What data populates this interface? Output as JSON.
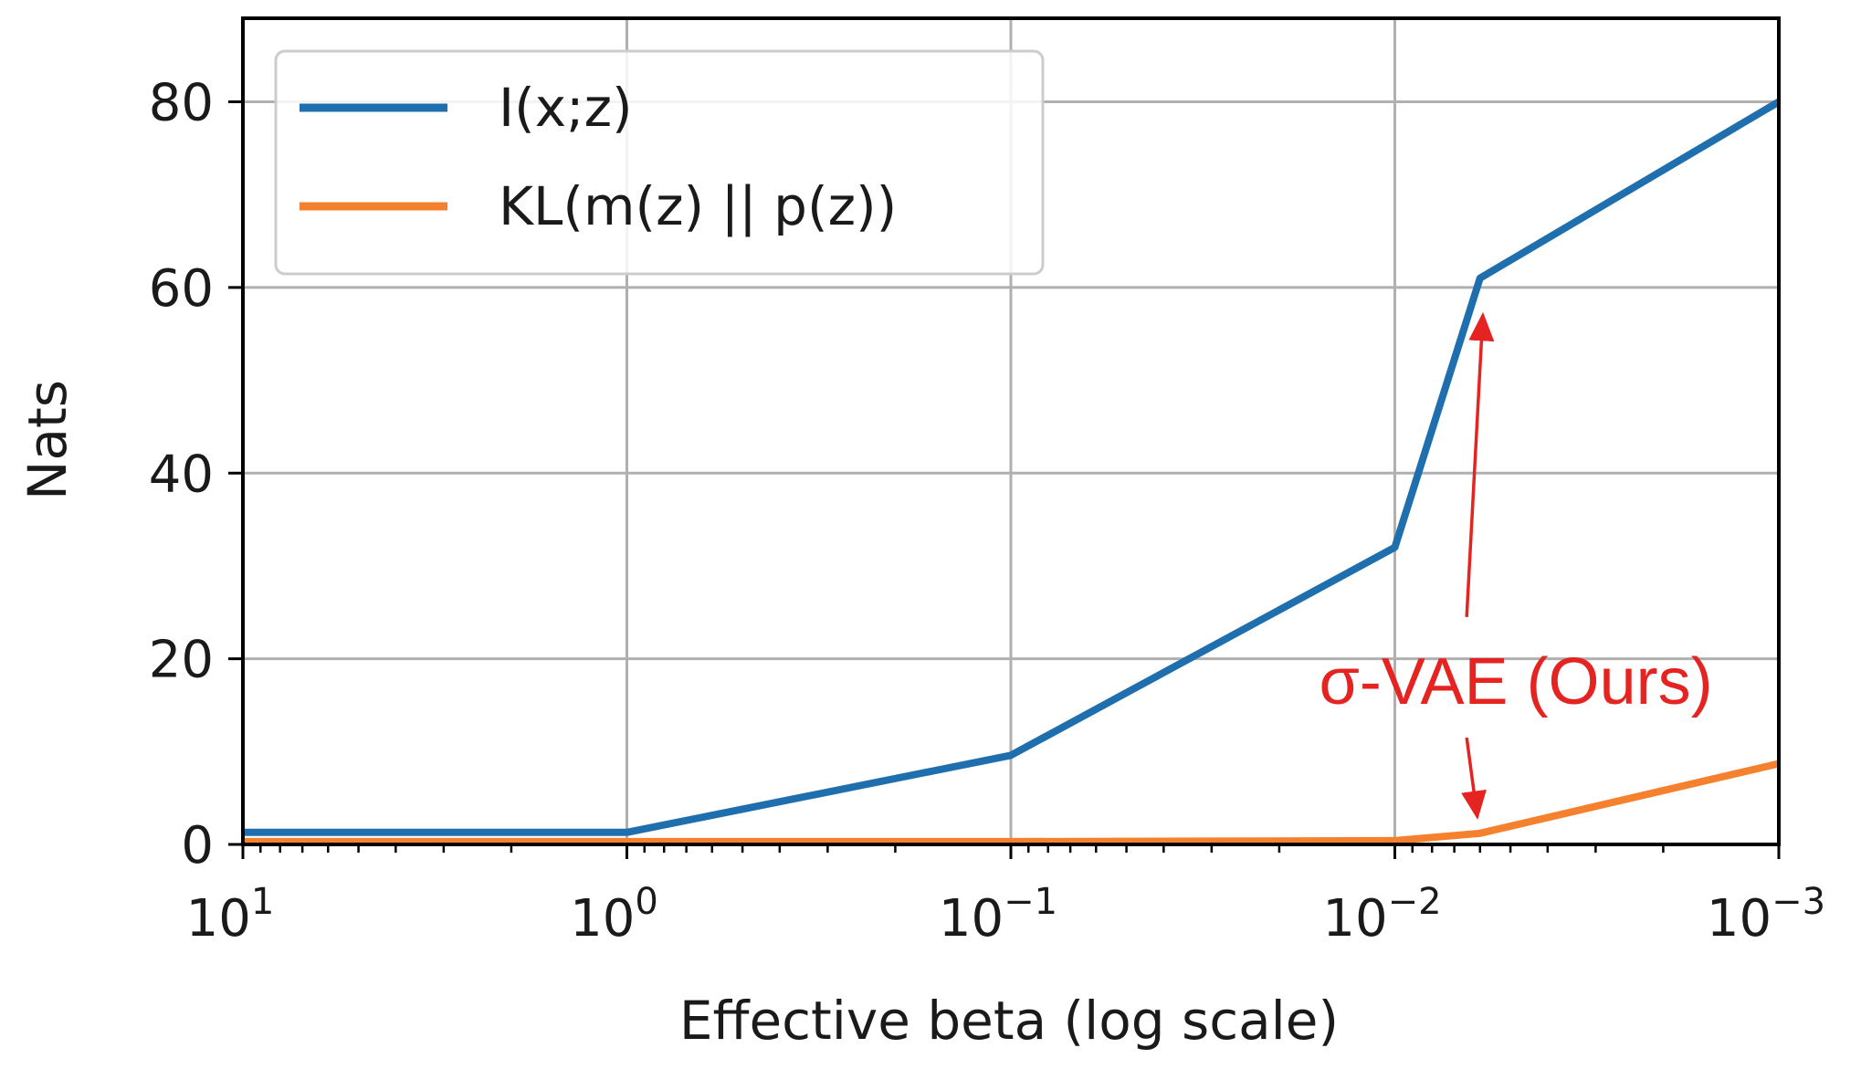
{
  "chart_data": {
    "type": "line",
    "title": "",
    "xlabel": "Effective beta (log scale)",
    "ylabel": "Nats",
    "x_scale": "log",
    "x_inverted": true,
    "xlim_log10": [
      1,
      -3
    ],
    "ylim": [
      0,
      89
    ],
    "grid": true,
    "legend_position": "upper-left",
    "x_ticks": [
      {
        "base": "10",
        "exp": "1",
        "log10": 1
      },
      {
        "base": "10",
        "exp": "0",
        "log10": 0
      },
      {
        "base": "10",
        "exp": "−1",
        "log10": -1
      },
      {
        "base": "10",
        "exp": "−2",
        "log10": -2
      },
      {
        "base": "10",
        "exp": "−3",
        "log10": -3
      }
    ],
    "y_ticks": [
      {
        "label": "0",
        "value": 0
      },
      {
        "label": "20",
        "value": 20
      },
      {
        "label": "40",
        "value": 40
      },
      {
        "label": "60",
        "value": 60
      },
      {
        "label": "80",
        "value": 80
      }
    ],
    "series": [
      {
        "name": "I(x;z)",
        "color": "#1f6fae",
        "x": [
          10,
          1,
          0.1,
          0.01,
          0.006,
          0.001
        ],
        "y": [
          1.3,
          1.3,
          9.6,
          32.0,
          61.0,
          80.0
        ]
      },
      {
        "name": "KL(m(z) || p(z))",
        "color": "#f5802e",
        "x": [
          10,
          1,
          0.1,
          0.01,
          0.006,
          0.001
        ],
        "y": [
          0.3,
          0.3,
          0.3,
          0.4,
          1.2,
          8.7
        ]
      }
    ],
    "annotation": {
      "text": "σ-VAE (Ours)",
      "color": "#e52421",
      "arrow_targets": [
        {
          "x": 0.0059,
          "y": 57
        },
        {
          "x": 0.0061,
          "y": 3
        }
      ],
      "anchor_x": 0.0065,
      "anchor_top_y": 24.5,
      "anchor_bottom_y": 11.5
    }
  }
}
